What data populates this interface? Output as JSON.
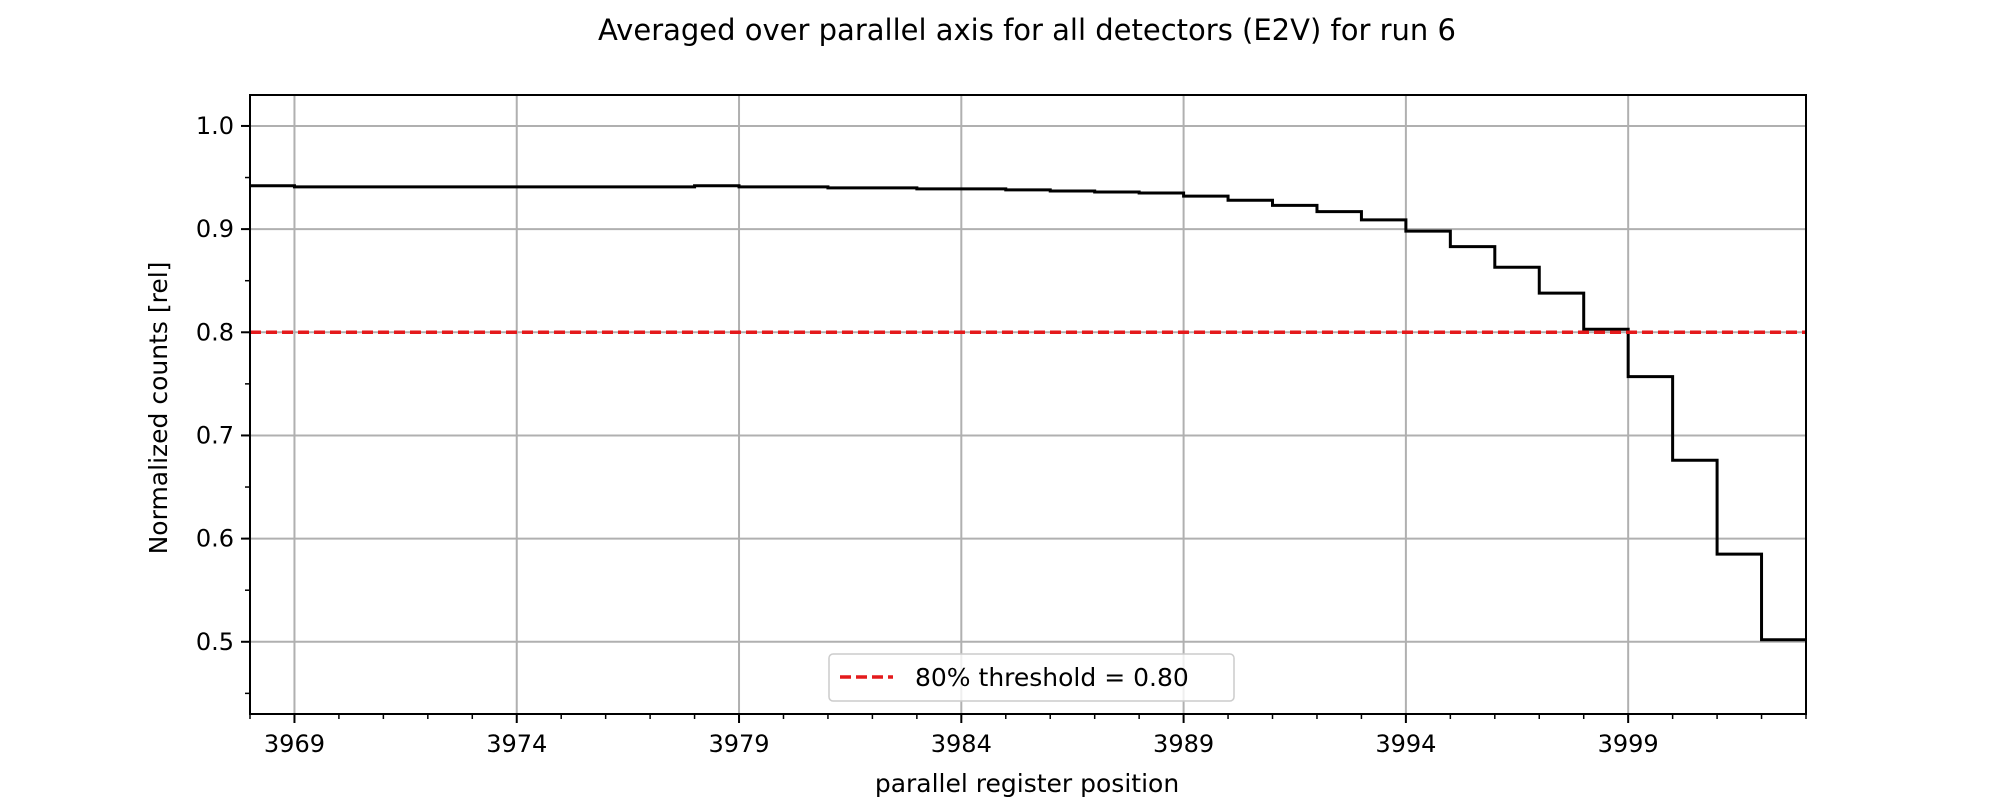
{
  "chart_data": {
    "type": "line",
    "drawstyle": "steps-post",
    "title": "Averaged over parallel axis for all detectors (E2V) for run 6",
    "xlabel": "parallel register position",
    "ylabel": "Normalized counts [rel]",
    "xlim": [
      3968,
      4003
    ],
    "ylim": [
      0.43,
      1.03
    ],
    "xticks": [
      3969,
      3974,
      3979,
      3984,
      3989,
      3994,
      3999
    ],
    "yticks": [
      0.5,
      0.6,
      0.7,
      0.8,
      0.9,
      1.0
    ],
    "ytick_labels": [
      "0.5",
      "0.6",
      "0.7",
      "0.8",
      "0.9",
      "1.0"
    ],
    "x_minor_tick_step": 1,
    "y_minor_tick_step": 0.05,
    "grid": true,
    "legend_placement": "lower center",
    "series": [
      {
        "x": [
          3968,
          3969,
          3970,
          3971,
          3972,
          3973,
          3974,
          3975,
          3976,
          3977,
          3978,
          3979,
          3980,
          3981,
          3982,
          3983,
          3984,
          3985,
          3986,
          3987,
          3988,
          3989,
          3990,
          3991,
          3992,
          3993,
          3994,
          3995,
          3996,
          3997,
          3998,
          3999,
          4000,
          4001,
          4002
        ],
        "values": [
          0.942,
          0.941,
          0.941,
          0.941,
          0.941,
          0.941,
          0.941,
          0.941,
          0.941,
          0.941,
          0.942,
          0.941,
          0.941,
          0.94,
          0.94,
          0.939,
          0.939,
          0.938,
          0.937,
          0.936,
          0.935,
          0.932,
          0.928,
          0.923,
          0.917,
          0.909,
          0.898,
          0.883,
          0.863,
          0.838,
          0.803,
          0.757,
          0.676,
          0.585,
          0.502
        ],
        "x_end": 4003,
        "color": "#000000"
      }
    ],
    "threshold": {
      "name": "80% threshold = 0.80",
      "value": 0.8,
      "color": "#e41a1c"
    }
  }
}
